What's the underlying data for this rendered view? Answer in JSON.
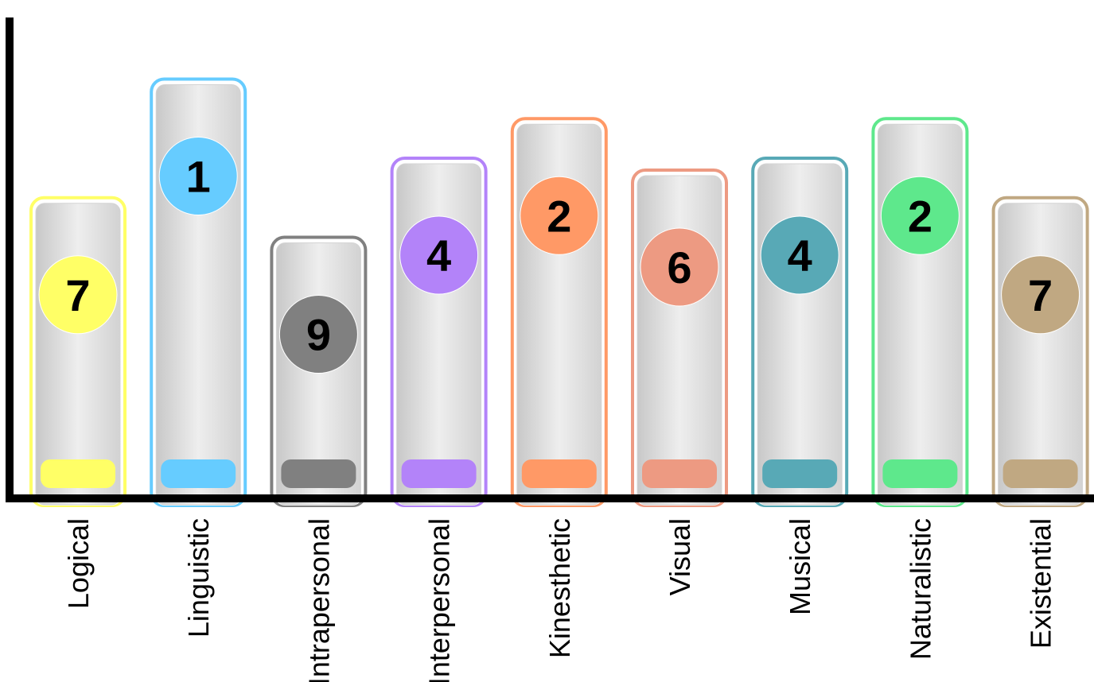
{
  "chart_data": {
    "type": "bar",
    "title": "",
    "xlabel": "",
    "ylabel": "",
    "categories": [
      "Logical",
      "Linguistic",
      "Intrapersonal",
      "Interpersonal",
      "Kinesthetic",
      "Visual",
      "Musical",
      "Naturalistic",
      "Existential"
    ],
    "values": [
      7.5,
      10.5,
      6.5,
      8.5,
      9.5,
      8.2,
      8.5,
      9.5,
      7.5
    ],
    "ranks": [
      "7",
      "1",
      "9",
      "4",
      "2",
      "6",
      "4",
      "2",
      "7"
    ],
    "colors": [
      "#ffff66",
      "#66ccff",
      "#808080",
      "#b383f9",
      "#ff9966",
      "#ed9a82",
      "#58a9b6",
      "#5ee88c",
      "#c0a882"
    ],
    "ylim": [
      0,
      12.5
    ],
    "grid": false,
    "legend": "none",
    "show_y_ticks": false
  }
}
